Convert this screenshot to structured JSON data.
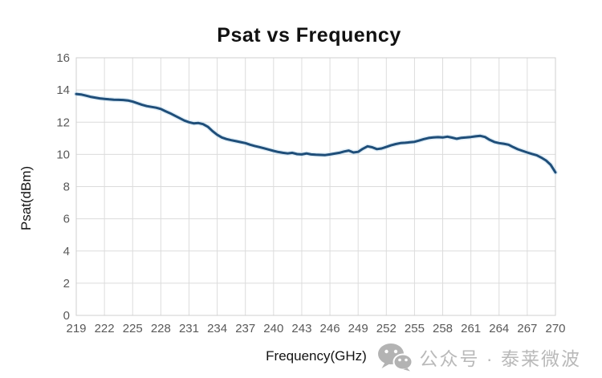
{
  "title": "Psat vs Frequency",
  "watermark": {
    "icon": "wechat-icon",
    "text": "公众号 · 泰莱微波",
    "color": "#b9b9b9"
  },
  "style": {
    "grid_color": "#dcdcdc",
    "border_color": "#cfcfcf",
    "tick_label_color": "#595959",
    "title_color": "#111111",
    "background": "#ffffff"
  },
  "chart_data": {
    "type": "line",
    "title": "Psat vs Frequency",
    "xlabel": "Frequency(GHz)",
    "ylabel": "Psat(dBm)",
    "xlim": [
      219,
      270
    ],
    "ylim": [
      0,
      16
    ],
    "grid": true,
    "legend_position": "none",
    "x_ticks": [
      219,
      222,
      225,
      228,
      231,
      234,
      237,
      240,
      243,
      246,
      249,
      252,
      255,
      258,
      261,
      264,
      267,
      270
    ],
    "y_ticks": [
      0,
      2,
      4,
      6,
      8,
      10,
      12,
      14,
      16
    ],
    "line_color": "#1f4e79",
    "glow_color": "#bfdcf0",
    "series": [
      {
        "name": "Psat",
        "points": [
          [
            219,
            13.75
          ],
          [
            219.5,
            13.72
          ],
          [
            220,
            13.65
          ],
          [
            220.5,
            13.58
          ],
          [
            221,
            13.53
          ],
          [
            221.5,
            13.48
          ],
          [
            222,
            13.45
          ],
          [
            222.5,
            13.42
          ],
          [
            223,
            13.4
          ],
          [
            223.5,
            13.39
          ],
          [
            224,
            13.38
          ],
          [
            224.5,
            13.35
          ],
          [
            225,
            13.28
          ],
          [
            225.5,
            13.18
          ],
          [
            226,
            13.08
          ],
          [
            226.5,
            13.0
          ],
          [
            227,
            12.95
          ],
          [
            227.5,
            12.9
          ],
          [
            228,
            12.82
          ],
          [
            228.5,
            12.68
          ],
          [
            229,
            12.55
          ],
          [
            229.5,
            12.4
          ],
          [
            230,
            12.25
          ],
          [
            230.5,
            12.1
          ],
          [
            231,
            12.0
          ],
          [
            231.5,
            11.93
          ],
          [
            232,
            11.95
          ],
          [
            232.5,
            11.88
          ],
          [
            233,
            11.72
          ],
          [
            233.5,
            11.45
          ],
          [
            234,
            11.22
          ],
          [
            234.5,
            11.05
          ],
          [
            235,
            10.95
          ],
          [
            235.5,
            10.88
          ],
          [
            236,
            10.82
          ],
          [
            236.5,
            10.76
          ],
          [
            237,
            10.7
          ],
          [
            237.5,
            10.6
          ],
          [
            238,
            10.52
          ],
          [
            238.5,
            10.45
          ],
          [
            239,
            10.38
          ],
          [
            239.5,
            10.3
          ],
          [
            240,
            10.22
          ],
          [
            240.5,
            10.15
          ],
          [
            241,
            10.1
          ],
          [
            241.5,
            10.06
          ],
          [
            242,
            10.1
          ],
          [
            242.5,
            10.02
          ],
          [
            243,
            10.0
          ],
          [
            243.5,
            10.06
          ],
          [
            244,
            10.0
          ],
          [
            244.5,
            9.98
          ],
          [
            245,
            9.97
          ],
          [
            245.5,
            9.96
          ],
          [
            246,
            10.0
          ],
          [
            246.5,
            10.05
          ],
          [
            247,
            10.1
          ],
          [
            247.5,
            10.18
          ],
          [
            248,
            10.24
          ],
          [
            248.5,
            10.12
          ],
          [
            249,
            10.16
          ],
          [
            249.5,
            10.35
          ],
          [
            250,
            10.5
          ],
          [
            250.5,
            10.44
          ],
          [
            251,
            10.33
          ],
          [
            251.5,
            10.37
          ],
          [
            252,
            10.46
          ],
          [
            252.5,
            10.56
          ],
          [
            253,
            10.64
          ],
          [
            253.5,
            10.7
          ],
          [
            254,
            10.72
          ],
          [
            254.5,
            10.75
          ],
          [
            255,
            10.78
          ],
          [
            255.5,
            10.86
          ],
          [
            256,
            10.95
          ],
          [
            256.5,
            11.02
          ],
          [
            257,
            11.05
          ],
          [
            257.5,
            11.07
          ],
          [
            258,
            11.05
          ],
          [
            258.5,
            11.1
          ],
          [
            259,
            11.04
          ],
          [
            259.5,
            10.97
          ],
          [
            260,
            11.03
          ],
          [
            260.5,
            11.05
          ],
          [
            261,
            11.08
          ],
          [
            261.5,
            11.12
          ],
          [
            262,
            11.15
          ],
          [
            262.5,
            11.08
          ],
          [
            263,
            10.9
          ],
          [
            263.5,
            10.77
          ],
          [
            264,
            10.7
          ],
          [
            264.5,
            10.66
          ],
          [
            265,
            10.6
          ],
          [
            265.5,
            10.45
          ],
          [
            266,
            10.32
          ],
          [
            266.5,
            10.22
          ],
          [
            267,
            10.12
          ],
          [
            267.5,
            10.03
          ],
          [
            268,
            9.95
          ],
          [
            268.5,
            9.8
          ],
          [
            269,
            9.62
          ],
          [
            269.5,
            9.35
          ],
          [
            270,
            8.88
          ]
        ]
      }
    ]
  }
}
